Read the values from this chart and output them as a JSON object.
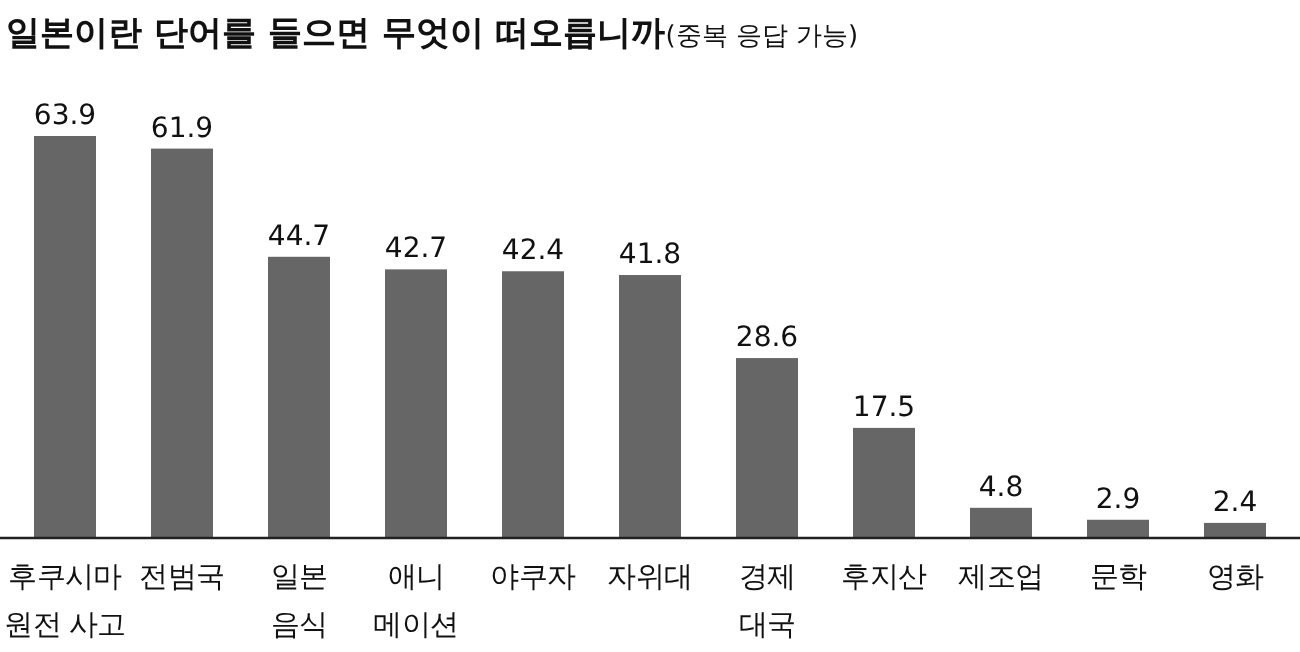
{
  "chart_data": {
    "type": "bar",
    "title": "일본이란 단어를 들으면 무엇이 떠오릅니까",
    "subtitle": "(중복 응답 가능)",
    "categories": [
      "후쿠시마\n원전 사고",
      "전범국",
      "일본\n음식",
      "애니\n메이션",
      "야쿠자",
      "자위대",
      "경제\n대국",
      "후지산",
      "제조업",
      "문학",
      "영화"
    ],
    "values": [
      63.9,
      61.9,
      44.7,
      42.7,
      42.4,
      41.8,
      28.6,
      17.5,
      4.8,
      2.9,
      2.4
    ],
    "color": "#666666",
    "data_labels": true
  }
}
